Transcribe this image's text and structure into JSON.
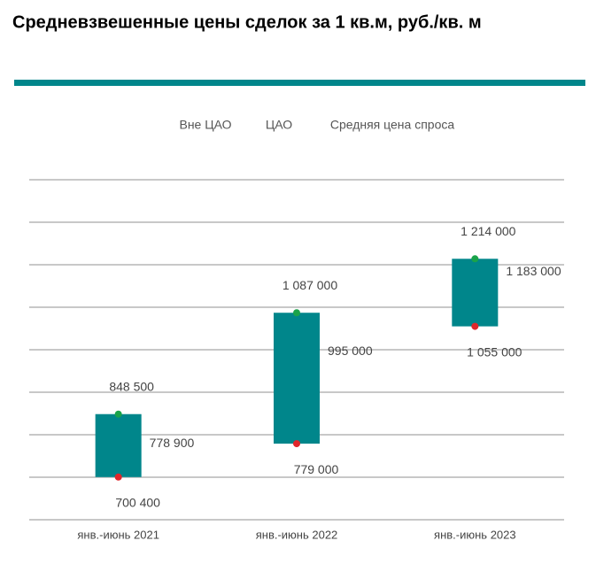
{
  "chart_data": {
    "type": "range-bar",
    "title": "Средневзвешенные цены сделок за 1 кв.м, руб./кв. м",
    "categories": [
      "янв.-июнь 2021",
      "янв.-июнь 2022",
      "янв.-июнь 2023"
    ],
    "series": [
      {
        "name": "Вне ЦАО",
        "color": "#e0262b",
        "values": [
          700400,
          779000,
          1055000
        ],
        "value_labels": [
          "700 400",
          "779 000",
          "1 055 000"
        ]
      },
      {
        "name": "ЦАО",
        "color": "#1aa34a",
        "values": [
          848500,
          1087000,
          1214000
        ],
        "value_labels": [
          "848 500",
          "1 087 000",
          "1 214 000"
        ]
      },
      {
        "name": "Средняя цена спроса",
        "color": "#00868b",
        "values": [
          778900,
          995000,
          1183000
        ],
        "value_labels": [
          "778 900",
          "995 000",
          "1 183 000"
        ]
      }
    ],
    "ylim": [
      600000,
      1400000
    ],
    "yticks": [
      600000,
      700000,
      800000,
      900000,
      1000000,
      1100000,
      1200000,
      1300000,
      1400000
    ],
    "grid": true
  }
}
